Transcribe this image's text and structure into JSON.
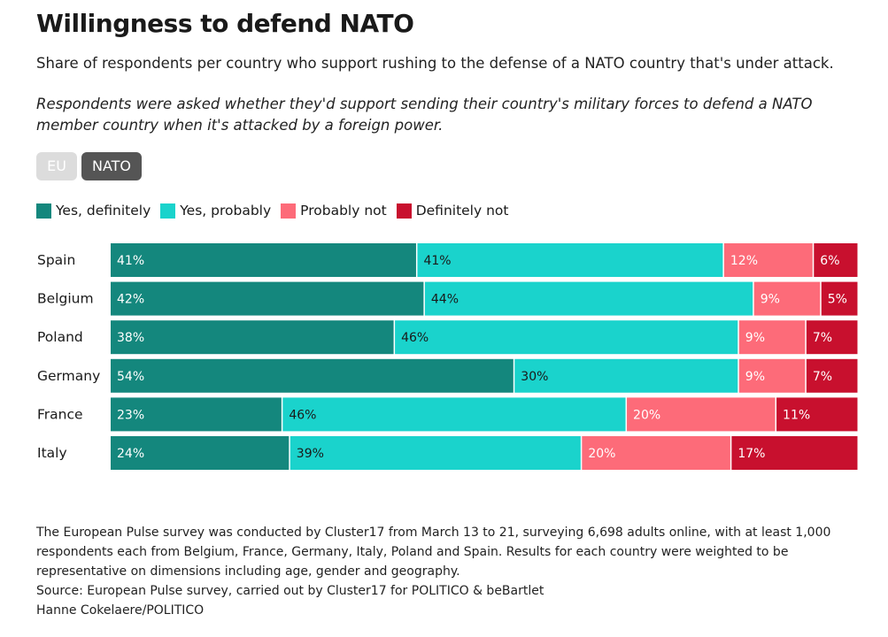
{
  "header": {
    "title": "Willingness to defend NATO",
    "subtitle": "Share of respondents per country who support rushing to the defense of a NATO country that's under attack.",
    "note": "Respondents were asked whether they'd support sending their country's military forces to defend a NATO member country when it's attacked by a foreign power."
  },
  "toggles": {
    "eu_label": "EU",
    "nato_label": "NATO",
    "selected": "NATO"
  },
  "legend": [
    {
      "label": "Yes, definitely",
      "color": "#14877d"
    },
    {
      "label": "Yes, probably",
      "color": "#1ad3cc"
    },
    {
      "label": "Probably not",
      "color": "#fd6b79"
    },
    {
      "label": "Definitely not",
      "color": "#c8102e"
    }
  ],
  "chart_data": {
    "type": "bar",
    "orientation": "horizontal",
    "stacked": true,
    "categories": [
      "Spain",
      "Belgium",
      "Poland",
      "Germany",
      "France",
      "Italy"
    ],
    "series": [
      {
        "name": "Yes, definitely",
        "color": "#14877d",
        "values": [
          41,
          42,
          38,
          54,
          23,
          24
        ]
      },
      {
        "name": "Yes, probably",
        "color": "#1ad3cc",
        "values": [
          41,
          44,
          46,
          30,
          46,
          39
        ]
      },
      {
        "name": "Probably not",
        "color": "#fd6b79",
        "values": [
          12,
          9,
          9,
          9,
          20,
          20
        ]
      },
      {
        "name": "Definitely not",
        "color": "#c8102e",
        "values": [
          6,
          5,
          7,
          7,
          11,
          17
        ]
      }
    ],
    "unit": "%",
    "title": "Willingness to defend NATO"
  },
  "footer": {
    "methodology": "The European Pulse survey was conducted by Cluster17 from March 13 to 21, surveying 6,698 adults online, with at least 1,000 respondents each from Belgium, France, Germany, Italy, Poland and Spain. Results for each country were weighted to be representative on dimensions including age, gender and geography.",
    "source": "Source: European Pulse survey, carried out by Cluster17 for POLITICO & beBartlet",
    "credit": "Hanne Cokelaere/POLITICO"
  }
}
